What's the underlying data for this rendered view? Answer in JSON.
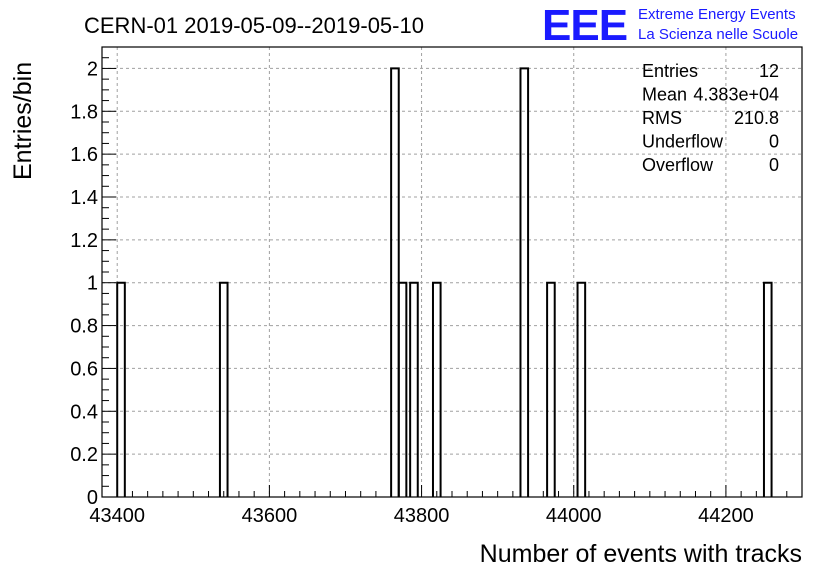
{
  "header": {
    "title": "CERN-01 2019-05-09--2019-05-10",
    "logo_text": "EEE",
    "logo_line1": "Extreme Energy Events",
    "logo_line2": "La Scienza nelle Scuole",
    "logo_color": "#1a1aff"
  },
  "stats": {
    "rows": [
      {
        "label": "Entries",
        "value": "12"
      },
      {
        "label": "Mean",
        "value": "4.383e+04"
      },
      {
        "label": "RMS",
        "value": "210.8"
      },
      {
        "label": "Underflow",
        "value": "0"
      },
      {
        "label": "Overflow",
        "value": "0"
      }
    ]
  },
  "chart_data": {
    "type": "bar",
    "histogram": true,
    "title": "CERN-01 2019-05-09--2019-05-10",
    "xlabel": "Number of events with tracks",
    "ylabel": "Entries/bin",
    "xlim": [
      43380,
      44300
    ],
    "ylim": [
      0,
      2.1
    ],
    "grid": true,
    "bin_width": 10,
    "x_ticks": [
      43400,
      43600,
      43800,
      44000,
      44200
    ],
    "y_ticks": [
      0,
      0.2,
      0.4,
      0.6,
      0.8,
      1,
      1.2,
      1.4,
      1.6,
      1.8,
      2
    ],
    "bins": [
      {
        "x_low": 43400,
        "x_high": 43410,
        "count": 1
      },
      {
        "x_low": 43535,
        "x_high": 43545,
        "count": 1
      },
      {
        "x_low": 43760,
        "x_high": 43770,
        "count": 2
      },
      {
        "x_low": 43770,
        "x_high": 43780,
        "count": 1
      },
      {
        "x_low": 43785,
        "x_high": 43795,
        "count": 1
      },
      {
        "x_low": 43815,
        "x_high": 43825,
        "count": 1
      },
      {
        "x_low": 43930,
        "x_high": 43940,
        "count": 2
      },
      {
        "x_low": 43965,
        "x_high": 43975,
        "count": 1
      },
      {
        "x_low": 44005,
        "x_high": 44015,
        "count": 1
      },
      {
        "x_low": 44250,
        "x_high": 44260,
        "count": 1
      }
    ],
    "line_color": "#000000",
    "grid_color": "#a0a0a0"
  }
}
